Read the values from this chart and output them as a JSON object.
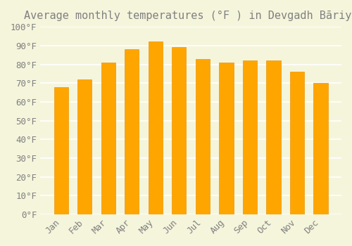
{
  "title": "Average monthly temperatures (°F ) in Devgadh Bāriya",
  "months": [
    "Jan",
    "Feb",
    "Mar",
    "Apr",
    "May",
    "Jun",
    "Jul",
    "Aug",
    "Sep",
    "Oct",
    "Nov",
    "Dec"
  ],
  "values": [
    68,
    72,
    81,
    88,
    92,
    89,
    83,
    81,
    82,
    82,
    76,
    70
  ],
  "bar_color": "#FFA500",
  "bar_edge_color": "#E8960A",
  "background_color": "#F5F5DC",
  "grid_color": "#FFFFFF",
  "text_color": "#808080",
  "ylim": [
    0,
    100
  ],
  "yticks": [
    0,
    10,
    20,
    30,
    40,
    50,
    60,
    70,
    80,
    90,
    100
  ],
  "title_fontsize": 11,
  "tick_fontsize": 9
}
